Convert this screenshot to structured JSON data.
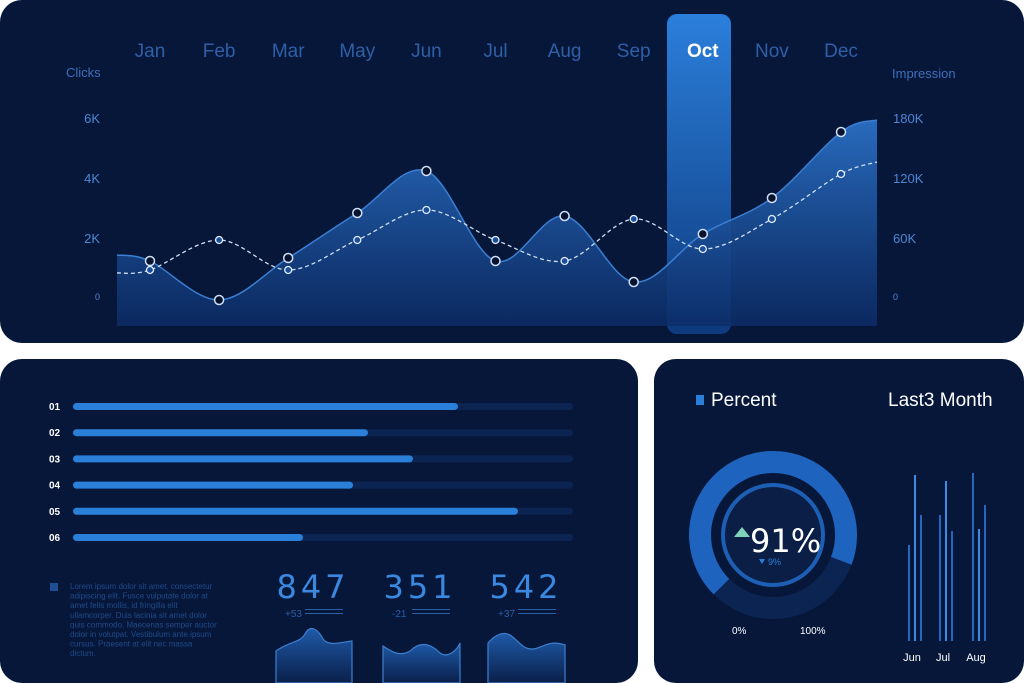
{
  "chart_data": [
    {
      "type": "area",
      "months": [
        "Jan",
        "Feb",
        "Mar",
        "May",
        "Jun",
        "Jul",
        "Aug",
        "Sep",
        "Oct",
        "Nov",
        "Dec"
      ],
      "highlighted": "Oct",
      "left_axis": {
        "label": "Clicks",
        "ticks": [
          "0",
          "2K",
          "4K",
          "6K"
        ],
        "ylim": [
          0,
          6000
        ]
      },
      "right_axis": {
        "label": "Impression",
        "ticks": [
          "0",
          "60K",
          "120K",
          "180K"
        ],
        "ylim": [
          0,
          180000
        ]
      },
      "series": [
        {
          "style": "filled area with solid markers",
          "values": [
            1300,
            0,
            1400,
            2900,
            4300,
            1300,
            2800,
            600,
            2200,
            3400,
            5600
          ]
        },
        {
          "style": "dashed line with hollow markers",
          "values": [
            30000,
            60000,
            30000,
            60000,
            90000,
            60000,
            39000,
            81000,
            51000,
            81000,
            126000
          ]
        }
      ],
      "grid": false
    },
    {
      "type": "bar",
      "orientation": "horizontal",
      "categories": [
        "01",
        "02",
        "03",
        "04",
        "05",
        "06"
      ],
      "values": [
        0.77,
        0.59,
        0.68,
        0.56,
        0.89,
        0.46
      ]
    },
    {
      "type": "bar",
      "title": "Last3 Month",
      "categories": [
        "Jun",
        "Jul",
        "Aug"
      ],
      "series_values": [
        [
          0.48,
          0.83,
          0.63
        ],
        [
          0.63,
          0.8,
          0.55
        ],
        [
          0.84,
          0.56,
          0.68
        ]
      ]
    }
  ],
  "stats": [
    {
      "value": "847",
      "delta": "+53"
    },
    {
      "value": "351",
      "delta": "-21"
    },
    {
      "value": "542",
      "delta": "+37"
    }
  ],
  "lorem": [
    "Lorem ipsum dolor sit amet, consectetur",
    "adipiscing elit. Fusce vulputate dolor at",
    "amet felis mollis, id fringilla elit",
    "ullamcorper. Duis lacinia sit amet dolor",
    "quis commodo. Maecenas semper auctor",
    "dolor in volutpat. Vestibulum ante ipsum",
    "cursus. Praesent at elit nec massa",
    "dictum."
  ],
  "percent": {
    "legend": "Percent",
    "value": "91%",
    "sub": "9%",
    "min_label": "0%",
    "max_label": "100%",
    "fraction": 0.91
  },
  "colors": {
    "panel": "#07173a",
    "accent": "#2a7fd8",
    "track": "#0c2452",
    "text": "#5b86c8",
    "white": "#ffffff"
  }
}
